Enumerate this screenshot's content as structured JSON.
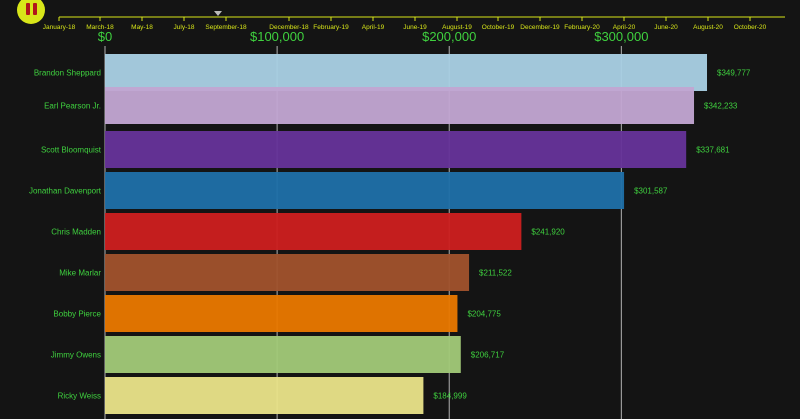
{
  "controls": {
    "pause_icon": "pause-icon",
    "accent_color": "#d8e619",
    "timeline_labels": [
      "January-18",
      "March-18",
      "May-18",
      "July-18",
      "September-18",
      "December-18",
      "February-19",
      "April-19",
      "June-19",
      "August-19",
      "October-19",
      "December-19",
      "February-20",
      "April-20",
      "June-20",
      "August-20",
      "October-20"
    ],
    "current_label": "September-18"
  },
  "colors": {
    "label": "#3fd13f",
    "grid": "#e6e6e6",
    "background": "#141414"
  },
  "chart_data": {
    "type": "bar",
    "orientation": "horizontal",
    "title": "",
    "xlabel": "",
    "ylabel": "",
    "xlim": [
      0,
      355000
    ],
    "xticks": [
      0,
      100000,
      200000,
      300000
    ],
    "xtick_labels": [
      "$0",
      "$100,000",
      "$200,000",
      "$300,000"
    ],
    "categories": [
      "Brandon Sheppard",
      "Earl Pearson Jr.",
      "Scott Bloomquist",
      "Jonathan Davenport",
      "Chris Madden",
      "Mike Marlar",
      "Bobby Pierce",
      "Jimmy Owens",
      "Ricky Weiss"
    ],
    "values": [
      349777,
      342233,
      337681,
      301587,
      241920,
      211522,
      204775,
      206717,
      184999
    ],
    "value_labels": [
      "$349,777",
      "$342,233",
      "$337,681",
      "$301,587",
      "$241,920",
      "$211,522",
      "$204,775",
      "$206,717",
      "$184,999"
    ],
    "bar_colors": [
      "#a9cfe3",
      "#c2a6d1",
      "#663399",
      "#1f6fa8",
      "#cc1f1f",
      "#a0522d",
      "#e87800",
      "#a1c978",
      "#e8e288"
    ]
  }
}
